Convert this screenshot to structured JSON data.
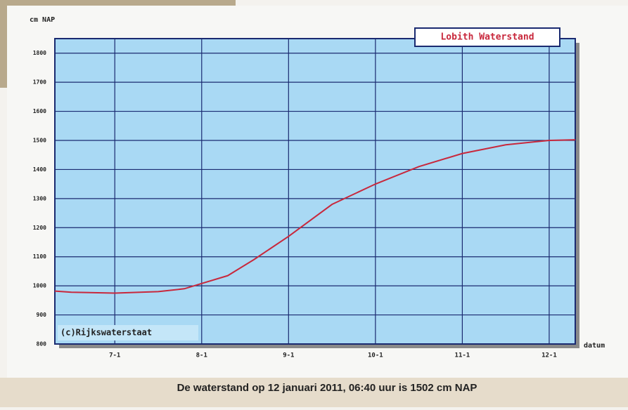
{
  "chart_data": {
    "type": "line",
    "y_label": "cm NAP",
    "x_label": "datum",
    "annotation": "(c)Rijkswaterstaat",
    "caption": "De waterstand op 12 januari 2011, 06:40 uur is 1502 cm NAP",
    "x": [
      6.31,
      6.5,
      7.0,
      7.5,
      7.8,
      8.0,
      8.3,
      8.6,
      9.0,
      9.5,
      10.0,
      10.5,
      11.0,
      11.5,
      12.0,
      12.3
    ],
    "series": [
      {
        "name": "Lobith Waterstand",
        "color": "#c8283c",
        "values": [
          982,
          978,
          975,
          980,
          990,
          1008,
          1035,
          1090,
          1170,
          1280,
          1350,
          1410,
          1455,
          1485,
          1500,
          1502
        ]
      }
    ],
    "xlim": [
      6.31,
      12.3
    ],
    "xticks": [
      {
        "value": 7,
        "label": "7-1"
      },
      {
        "value": 8,
        "label": "8-1"
      },
      {
        "value": 9,
        "label": "9-1"
      },
      {
        "value": 10,
        "label": "10-1"
      },
      {
        "value": 11,
        "label": "11-1"
      },
      {
        "value": 12,
        "label": "12-1"
      }
    ],
    "ylim": [
      800,
      1850
    ],
    "yticks": [
      800,
      900,
      1000,
      1100,
      1200,
      1300,
      1400,
      1500,
      1600,
      1700,
      1800
    ],
    "grid": true,
    "legend": "top-right"
  }
}
